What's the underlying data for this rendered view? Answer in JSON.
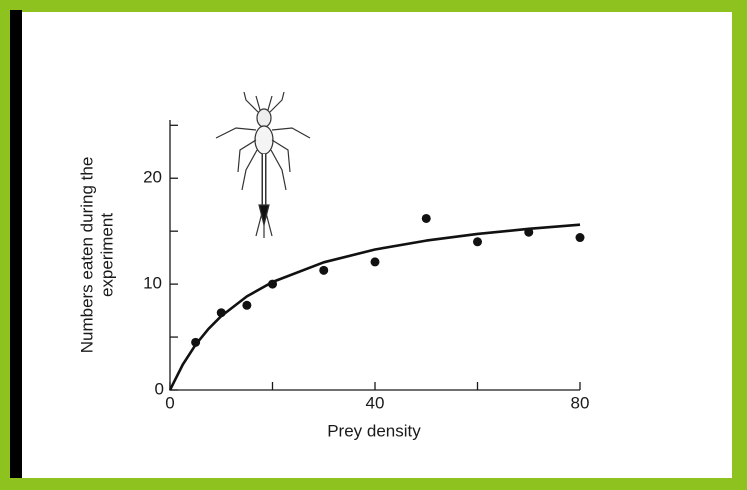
{
  "chart_data": {
    "type": "scatter",
    "xlabel": "Prey density",
    "ylabel": [
      "Numbers eaten during the",
      "experiment"
    ],
    "xlim": [
      0,
      80
    ],
    "ylim": [
      0,
      25.5
    ],
    "xticks": [
      0,
      40,
      80
    ],
    "yticks": [
      0,
      10,
      20
    ],
    "xminorticks": [
      20,
      60
    ],
    "yminorticks": [
      5,
      15,
      25
    ],
    "color": "#111111",
    "series": [
      {
        "type": "scatter",
        "x": [
          5,
          10,
          15,
          20,
          30,
          40,
          50,
          60,
          70,
          80
        ],
        "values": [
          4.5,
          7.3,
          8.0,
          10.0,
          11.3,
          12.1,
          16.2,
          14.0,
          14.9,
          14.4
        ]
      },
      {
        "type": "line",
        "x": [
          0,
          2.5,
          5,
          7.5,
          10,
          15,
          20,
          30,
          40,
          50,
          60,
          70,
          80
        ],
        "values": [
          0,
          2.41,
          4.28,
          5.77,
          6.98,
          8.84,
          10.2,
          12.06,
          13.27,
          14.11,
          14.74,
          15.22,
          15.61
        ]
      }
    ]
  }
}
